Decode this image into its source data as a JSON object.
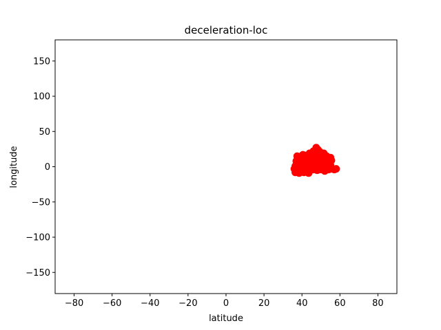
{
  "chart_data": {
    "type": "scatter",
    "title": "deceleration-loc",
    "xlabel": "latitude",
    "ylabel": "longitude",
    "xlim": [
      -90,
      90
    ],
    "ylim": [
      -180,
      180
    ],
    "xticks": [
      -80,
      -60,
      -40,
      -20,
      0,
      20,
      40,
      60,
      80
    ],
    "yticks": [
      -150,
      -100,
      -50,
      0,
      50,
      100,
      150
    ],
    "xtick_labels": [
      "−80",
      "−60",
      "−40",
      "−20",
      "0",
      "20",
      "40",
      "60",
      "80"
    ],
    "ytick_labels": [
      "−150",
      "−100",
      "−50",
      "0",
      "50",
      "100",
      "150"
    ],
    "grid": false,
    "marker_color": "#ff0000",
    "points": [
      [
        47.5,
        27
      ],
      [
        48.5,
        24
      ],
      [
        46,
        22
      ],
      [
        49.5,
        21
      ],
      [
        44,
        19
      ],
      [
        51.5,
        19
      ],
      [
        47,
        18
      ],
      [
        40.5,
        17
      ],
      [
        42,
        16
      ],
      [
        45,
        16
      ],
      [
        53,
        15
      ],
      [
        37.5,
        15
      ],
      [
        39,
        14
      ],
      [
        41,
        13
      ],
      [
        43.5,
        14
      ],
      [
        46.5,
        14
      ],
      [
        49,
        15
      ],
      [
        55,
        13
      ],
      [
        38,
        12
      ],
      [
        40,
        11
      ],
      [
        44.5,
        11
      ],
      [
        48,
        11
      ],
      [
        51,
        12
      ],
      [
        53.5,
        11
      ],
      [
        42,
        10
      ],
      [
        46,
        9
      ],
      [
        50,
        9
      ],
      [
        55.5,
        9
      ],
      [
        37,
        8
      ],
      [
        39.5,
        8
      ],
      [
        43,
        7
      ],
      [
        47.5,
        7
      ],
      [
        52,
        7
      ],
      [
        41,
        5
      ],
      [
        45,
        5
      ],
      [
        49,
        5
      ],
      [
        54,
        5
      ],
      [
        38.5,
        4
      ],
      [
        43.5,
        3
      ],
      [
        47,
        3
      ],
      [
        51,
        3
      ],
      [
        55,
        2
      ],
      [
        40,
        2
      ],
      [
        36.5,
        1
      ],
      [
        42,
        0
      ],
      [
        45.5,
        0
      ],
      [
        49.5,
        0
      ],
      [
        53,
        0
      ],
      [
        38,
        -1
      ],
      [
        41.5,
        -2
      ],
      [
        44,
        -2
      ],
      [
        47.5,
        -2
      ],
      [
        51.5,
        -2
      ],
      [
        55.5,
        -3
      ],
      [
        58,
        -3
      ],
      [
        36,
        -3
      ],
      [
        39,
        -4
      ],
      [
        42.5,
        -4
      ],
      [
        46,
        -4
      ],
      [
        50,
        -4
      ],
      [
        54,
        -4
      ],
      [
        57,
        -4
      ],
      [
        37,
        -6
      ],
      [
        40,
        -6
      ],
      [
        44,
        -6
      ],
      [
        48,
        -5
      ],
      [
        52,
        -6
      ],
      [
        36.5,
        -8
      ],
      [
        38.5,
        -9
      ],
      [
        41,
        -8
      ],
      [
        43.5,
        -9
      ],
      [
        39.5,
        1
      ],
      [
        43,
        12
      ],
      [
        50.5,
        17
      ],
      [
        52.5,
        3
      ],
      [
        45,
        -1
      ],
      [
        48.5,
        9
      ]
    ]
  }
}
